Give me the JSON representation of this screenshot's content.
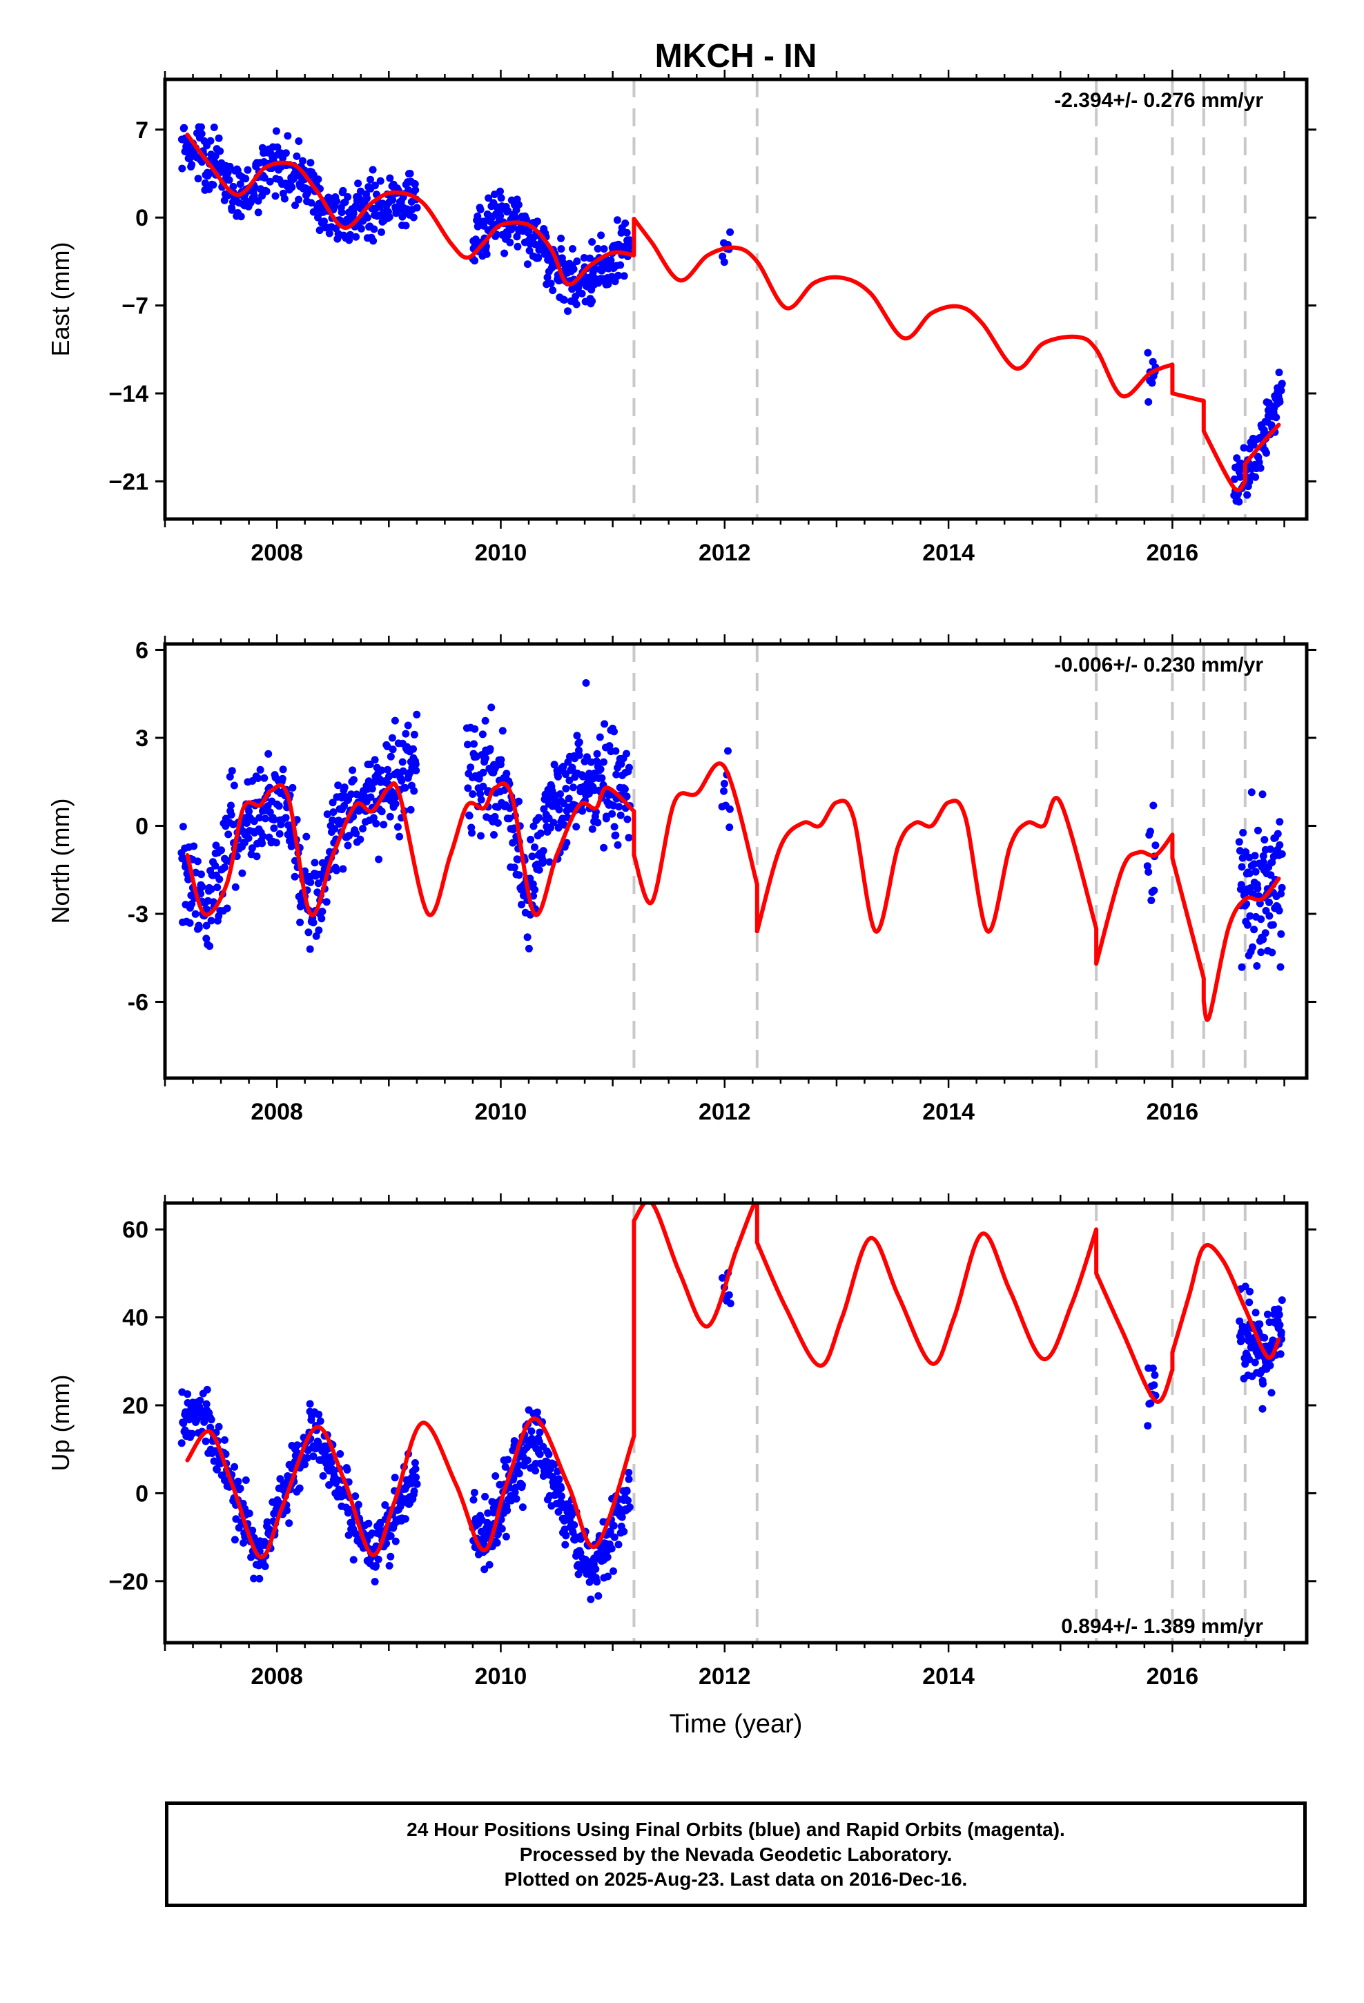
{
  "figure": {
    "title": "MKCH - IN",
    "xlabel": "Time (year)"
  },
  "footer": {
    "lines": [
      "24 Hour Positions Using Final Orbits (blue) and Rapid Orbits (magenta).",
      "Processed by the Nevada Geodetic Laboratory.",
      "Plotted on 2025-Aug-23. Last data on 2016-Dec-16."
    ]
  },
  "colors": {
    "data": "#0000ff",
    "model": "#ff0000",
    "breaks": "#c8c8c8",
    "axes": "#000000"
  },
  "chart_data": [
    {
      "type": "scatter",
      "ylabel": "East (mm)",
      "rate": "-2.394+/- 0.276 mm/yr",
      "rate_position": "top-right",
      "xlim": [
        2007.0,
        2017.2
      ],
      "ylim": [
        -24.0,
        11.0
      ],
      "yticks": [
        7,
        0,
        -7,
        -14,
        -21
      ],
      "ytick_labels": [
        "7",
        "0",
        "−7",
        "−14",
        "−21"
      ],
      "xticks": [
        2008,
        2010,
        2012,
        2014,
        2016
      ],
      "breaks": [
        2011.19,
        2012.29,
        2015.32,
        2016.0,
        2016.28,
        2016.65
      ],
      "data_segments": [
        {
          "x0": 2007.15,
          "x1": 2009.25,
          "y_points": [
            [
              2007.15,
              6.0
            ],
            [
              2007.4,
              4.5
            ],
            [
              2007.65,
              1.5
            ],
            [
              2008.0,
              4.2
            ],
            [
              2008.3,
              2.5
            ],
            [
              2008.55,
              -0.5
            ],
            [
              2008.8,
              0.8
            ],
            [
              2009.25,
              2.0
            ]
          ],
          "spread": 1.6,
          "n": 380
        },
        {
          "x0": 2009.75,
          "x1": 2011.15,
          "y_points": [
            [
              2009.75,
              -2.0
            ],
            [
              2010.0,
              -0.5
            ],
            [
              2010.25,
              -0.8
            ],
            [
              2010.6,
              -5.5
            ],
            [
              2010.9,
              -4.0
            ],
            [
              2011.15,
              -2.5
            ]
          ],
          "spread": 1.5,
          "n": 300
        },
        {
          "x0": 2011.98,
          "x1": 2012.05,
          "y_points": [
            [
              2011.98,
              -3.0
            ],
            [
              2012.05,
              -2.0
            ]
          ],
          "spread": 1.2,
          "n": 8
        },
        {
          "x0": 2015.78,
          "x1": 2015.85,
          "y_points": [
            [
              2015.78,
              -13.0
            ],
            [
              2015.85,
              -12.0
            ]
          ],
          "spread": 1.3,
          "n": 10
        },
        {
          "x0": 2016.55,
          "x1": 2016.98,
          "y_points": [
            [
              2016.55,
              -21.0
            ],
            [
              2016.75,
              -19.5
            ],
            [
              2016.98,
              -13.5
            ]
          ],
          "spread": 1.4,
          "n": 90
        }
      ],
      "model": {
        "knots": [
          [
            2007.2,
            6.6
          ],
          [
            2007.4,
            4.2
          ],
          [
            2007.65,
            1.8
          ],
          [
            2007.9,
            4.0
          ],
          [
            2008.15,
            4.2
          ],
          [
            2008.35,
            2.2
          ],
          [
            2008.6,
            -0.8
          ],
          [
            2008.85,
            1.2
          ],
          [
            2009.05,
            2.0
          ],
          [
            2009.3,
            1.2
          ],
          [
            2009.55,
            -2.0
          ],
          [
            2009.7,
            -3.2
          ],
          [
            2009.85,
            -2.0
          ],
          [
            2010.0,
            -0.6
          ],
          [
            2010.25,
            -0.6
          ],
          [
            2010.45,
            -2.5
          ],
          [
            2010.6,
            -5.3
          ],
          [
            2010.8,
            -3.8
          ],
          [
            2011.0,
            -2.8
          ],
          [
            2011.19,
            -3.0
          ],
          [
            2011.19,
            -0.1
          ],
          [
            2011.35,
            -2.0
          ],
          [
            2011.6,
            -5.0
          ],
          [
            2011.85,
            -3.0
          ],
          [
            2012.1,
            -2.4
          ],
          [
            2012.29,
            -3.5
          ],
          [
            2012.55,
            -7.2
          ],
          [
            2012.8,
            -5.2
          ],
          [
            2013.05,
            -4.8
          ],
          [
            2013.3,
            -6.0
          ],
          [
            2013.6,
            -9.6
          ],
          [
            2013.85,
            -7.6
          ],
          [
            2014.1,
            -7.1
          ],
          [
            2014.3,
            -8.4
          ],
          [
            2014.6,
            -12.0
          ],
          [
            2014.85,
            -10.0
          ],
          [
            2015.15,
            -9.5
          ],
          [
            2015.32,
            -10.5
          ],
          [
            2015.55,
            -14.2
          ],
          [
            2015.8,
            -12.4
          ],
          [
            2016.0,
            -11.7
          ],
          [
            2016.0,
            -14.0
          ],
          [
            2016.28,
            -14.6
          ],
          [
            2016.28,
            -17.0
          ],
          [
            2016.55,
            -21.5
          ],
          [
            2016.65,
            -21.0
          ],
          [
            2016.65,
            -19.6
          ],
          [
            2016.8,
            -18.0
          ],
          [
            2016.95,
            -16.5
          ]
        ]
      }
    },
    {
      "type": "scatter",
      "ylabel": "North (mm)",
      "rate": "-0.006+/- 0.230 mm/yr",
      "rate_position": "top-right",
      "xlim": [
        2007.0,
        2017.2
      ],
      "ylim": [
        -8.6,
        6.2
      ],
      "yticks": [
        6,
        3,
        0,
        -3,
        -6
      ],
      "ytick_labels": [
        "6",
        "3",
        "0",
        "-3",
        "-6"
      ],
      "xticks": [
        2008,
        2010,
        2012,
        2014,
        2016
      ],
      "breaks": [
        2011.19,
        2012.29,
        2015.32,
        2016.0,
        2016.28,
        2016.65
      ],
      "data_segments": [
        {
          "x0": 2007.15,
          "x1": 2009.25,
          "y_points": [
            [
              2007.15,
              -1.0
            ],
            [
              2007.35,
              -3.0
            ],
            [
              2007.6,
              0.0
            ],
            [
              2007.9,
              0.8
            ],
            [
              2008.1,
              0.5
            ],
            [
              2008.3,
              -3.0
            ],
            [
              2008.6,
              0.5
            ],
            [
              2008.9,
              1.2
            ],
            [
              2009.25,
              2.0
            ]
          ],
          "spread": 1.1,
          "n": 420
        },
        {
          "x0": 2009.7,
          "x1": 2011.15,
          "y_points": [
            [
              2009.7,
              1.5
            ],
            [
              2010.0,
              2.0
            ],
            [
              2010.25,
              -2.5
            ],
            [
              2010.45,
              0.5
            ],
            [
              2010.7,
              1.5
            ],
            [
              2011.15,
              1.2
            ]
          ],
          "spread": 1.2,
          "n": 320
        },
        {
          "x0": 2011.98,
          "x1": 2012.05,
          "y_points": [
            [
              2011.98,
              1.5
            ],
            [
              2012.05,
              0.5
            ]
          ],
          "spread": 0.9,
          "n": 8
        },
        {
          "x0": 2015.78,
          "x1": 2015.85,
          "y_points": [
            [
              2015.78,
              -1.5
            ],
            [
              2015.85,
              -1.0
            ]
          ],
          "spread": 1.8,
          "n": 10
        },
        {
          "x0": 2016.6,
          "x1": 2016.98,
          "y_points": [
            [
              2016.6,
              -2.8
            ],
            [
              2016.8,
              -2.0
            ],
            [
              2016.98,
              -1.8
            ]
          ],
          "spread": 1.8,
          "n": 100
        }
      ],
      "model": {
        "knots": [
          [
            2007.2,
            -1.0
          ],
          [
            2007.35,
            -3.0
          ],
          [
            2007.55,
            -2.0
          ],
          [
            2007.7,
            0.6
          ],
          [
            2007.85,
            0.7
          ],
          [
            2007.95,
            1.2
          ],
          [
            2008.1,
            1.0
          ],
          [
            2008.3,
            -3.0
          ],
          [
            2008.5,
            -1.0
          ],
          [
            2008.7,
            0.7
          ],
          [
            2008.85,
            0.5
          ],
          [
            2009.0,
            1.3
          ],
          [
            2009.1,
            1.0
          ],
          [
            2009.35,
            -3.0
          ],
          [
            2009.55,
            -1.0
          ],
          [
            2009.7,
            0.7
          ],
          [
            2009.85,
            0.6
          ],
          [
            2009.95,
            1.3
          ],
          [
            2010.1,
            1.0
          ],
          [
            2010.3,
            -3.0
          ],
          [
            2010.5,
            -1.0
          ],
          [
            2010.7,
            0.7
          ],
          [
            2010.85,
            0.6
          ],
          [
            2010.95,
            1.3
          ],
          [
            2011.19,
            0.5
          ],
          [
            2011.19,
            -1.0
          ],
          [
            2011.35,
            -2.6
          ],
          [
            2011.55,
            0.8
          ],
          [
            2011.75,
            1.1
          ],
          [
            2012.0,
            2.0
          ],
          [
            2012.29,
            -2.0
          ],
          [
            2012.29,
            -3.6
          ],
          [
            2012.5,
            -0.7
          ],
          [
            2012.7,
            0.1
          ],
          [
            2012.85,
            0.0
          ],
          [
            2013.0,
            0.8
          ],
          [
            2013.15,
            0.3
          ],
          [
            2013.35,
            -3.6
          ],
          [
            2013.55,
            -0.7
          ],
          [
            2013.7,
            0.1
          ],
          [
            2013.85,
            0.0
          ],
          [
            2014.0,
            0.8
          ],
          [
            2014.15,
            0.3
          ],
          [
            2014.35,
            -3.6
          ],
          [
            2014.55,
            -0.7
          ],
          [
            2014.7,
            0.1
          ],
          [
            2014.85,
            0.0
          ],
          [
            2015.0,
            0.8
          ],
          [
            2015.32,
            -3.5
          ],
          [
            2015.32,
            -4.7
          ],
          [
            2015.55,
            -1.5
          ],
          [
            2015.7,
            -0.9
          ],
          [
            2015.85,
            -1.0
          ],
          [
            2016.0,
            -0.3
          ],
          [
            2016.0,
            -1.1
          ],
          [
            2016.28,
            -5.2
          ],
          [
            2016.28,
            -6.0
          ],
          [
            2016.33,
            -6.5
          ],
          [
            2016.5,
            -3.5
          ],
          [
            2016.65,
            -2.5
          ],
          [
            2016.8,
            -2.5
          ],
          [
            2016.95,
            -1.8
          ]
        ]
      }
    },
    {
      "type": "scatter",
      "ylabel": "Up (mm)",
      "rate": "0.894+/- 1.389 mm/yr",
      "rate_position": "bottom-right",
      "xlim": [
        2007.0,
        2017.2
      ],
      "ylim": [
        -34.0,
        66.0
      ],
      "yticks": [
        60,
        40,
        20,
        0,
        -20
      ],
      "ytick_labels": [
        "60",
        "40",
        "20",
        "0",
        "−20"
      ],
      "xticks": [
        2008,
        2010,
        2012,
        2014,
        2016
      ],
      "breaks": [
        2011.19,
        2012.29,
        2015.32,
        2016.0,
        2016.28,
        2016.65
      ],
      "data_segments": [
        {
          "x0": 2007.15,
          "x1": 2009.25,
          "y_points": [
            [
              2007.15,
              16.0
            ],
            [
              2007.35,
              18.0
            ],
            [
              2007.85,
              -15.0
            ],
            [
              2008.3,
              15.0
            ],
            [
              2008.85,
              -14.0
            ],
            [
              2009.25,
              4.0
            ]
          ],
          "spread": 4.5,
          "n": 420
        },
        {
          "x0": 2009.75,
          "x1": 2011.15,
          "y_points": [
            [
              2009.75,
              -9.0
            ],
            [
              2009.85,
              -12.0
            ],
            [
              2010.3,
              14.0
            ],
            [
              2010.8,
              -18.0
            ],
            [
              2011.15,
              -2.0
            ]
          ],
          "spread": 5.0,
          "n": 320
        },
        {
          "x0": 2011.98,
          "x1": 2012.05,
          "y_points": [
            [
              2011.98,
              45.0
            ],
            [
              2012.05,
              50.0
            ]
          ],
          "spread": 4.0,
          "n": 8
        },
        {
          "x0": 2015.78,
          "x1": 2015.85,
          "y_points": [
            [
              2015.78,
              20.0
            ],
            [
              2015.85,
              24.0
            ]
          ],
          "spread": 5.0,
          "n": 10
        },
        {
          "x0": 2016.6,
          "x1": 2016.98,
          "y_points": [
            [
              2016.6,
              38.0
            ],
            [
              2016.8,
              32.0
            ],
            [
              2016.98,
              36.0
            ]
          ],
          "spread": 6.0,
          "n": 100
        }
      ],
      "model": {
        "knots": [
          [
            2007.2,
            7.5
          ],
          [
            2007.4,
            14.0
          ],
          [
            2007.6,
            2.0
          ],
          [
            2007.85,
            -14.5
          ],
          [
            2008.05,
            -3.0
          ],
          [
            2008.35,
            15.0
          ],
          [
            2008.6,
            3.0
          ],
          [
            2008.85,
            -14.0
          ],
          [
            2009.05,
            -2.0
          ],
          [
            2009.3,
            16.0
          ],
          [
            2009.6,
            2.0
          ],
          [
            2009.85,
            -13.0
          ],
          [
            2010.05,
            2.0
          ],
          [
            2010.3,
            17.0
          ],
          [
            2010.6,
            2.0
          ],
          [
            2010.85,
            -12.0
          ],
          [
            2011.19,
            13.0
          ],
          [
            2011.19,
            62.0
          ],
          [
            2011.35,
            66.0
          ],
          [
            2011.6,
            50.0
          ],
          [
            2011.85,
            38.0
          ],
          [
            2012.1,
            55.0
          ],
          [
            2012.25,
            65.0
          ],
          [
            2012.29,
            66.0
          ],
          [
            2012.29,
            57.0
          ],
          [
            2012.55,
            42.0
          ],
          [
            2012.85,
            29.0
          ],
          [
            2013.05,
            40.0
          ],
          [
            2013.3,
            58.0
          ],
          [
            2013.55,
            45.0
          ],
          [
            2013.85,
            29.5
          ],
          [
            2014.05,
            40.0
          ],
          [
            2014.3,
            59.0
          ],
          [
            2014.55,
            46.0
          ],
          [
            2014.85,
            30.5
          ],
          [
            2015.1,
            43.0
          ],
          [
            2015.32,
            60.0
          ],
          [
            2015.32,
            50.0
          ],
          [
            2015.55,
            37.0
          ],
          [
            2015.85,
            21.0
          ],
          [
            2016.0,
            28.0
          ],
          [
            2016.0,
            32.0
          ],
          [
            2016.15,
            45.0
          ],
          [
            2016.28,
            56.0
          ],
          [
            2016.45,
            53.0
          ],
          [
            2016.65,
            42.0
          ],
          [
            2016.85,
            31.0
          ],
          [
            2016.95,
            35.0
          ]
        ]
      }
    }
  ]
}
